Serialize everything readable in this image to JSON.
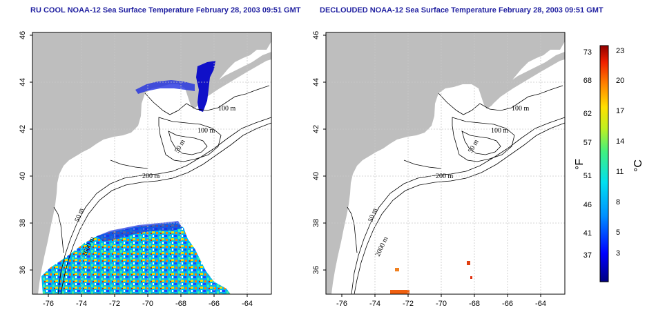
{
  "titles": {
    "left": "RU COOL NOAA-12 Sea Surface Temperature February 28, 2003 09:51 GMT",
    "right": "DECLOUDED NOAA-12 Sea Surface Temperature February 28, 2003 09:51 GMT"
  },
  "axes": {
    "lon_ticks": [
      "-76",
      "-74",
      "-72",
      "-70",
      "-68",
      "-66",
      "-64"
    ],
    "lat_ticks": [
      "36",
      "38",
      "40",
      "42",
      "44",
      "46"
    ],
    "lon_range": [
      -77.2,
      -63
    ],
    "lat_range": [
      35,
      46.2
    ]
  },
  "isobath_labels": {
    "left": [
      "100 m",
      "100 m",
      "50 m",
      "200 m",
      "50 m",
      "2000 m"
    ],
    "right": [
      "100 m",
      "100 m",
      "50 m",
      "200 m",
      "50 m",
      "2000 m"
    ]
  },
  "colorbar": {
    "fahrenheit_ticks": [
      "73",
      "68",
      "62",
      "57",
      "51",
      "46",
      "41",
      "37"
    ],
    "celsius_ticks": [
      "23",
      "20",
      "17",
      "14",
      "11",
      "8",
      "5",
      "3"
    ],
    "fahrenheit_unit": "°F",
    "celsius_unit": "°C",
    "colors": [
      "#000080",
      "#0000ff",
      "#0080ff",
      "#00d0ff",
      "#20e8a0",
      "#80f040",
      "#f0f000",
      "#ff9000",
      "#ff2000",
      "#a00000"
    ]
  },
  "colors": {
    "land": "#bebebe",
    "ocean": "#ffffff",
    "contour": "#000000",
    "title": "#1f1fa0",
    "grid": "#c8c8c8"
  }
}
